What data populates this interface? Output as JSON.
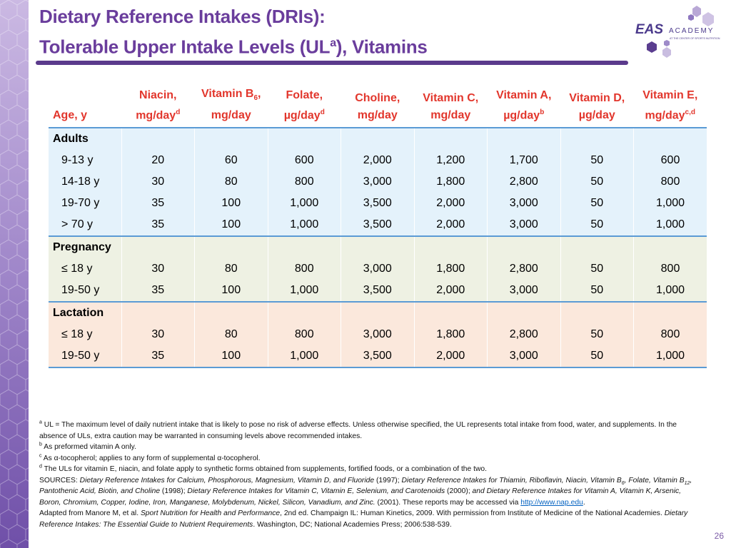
{
  "title": {
    "line1": "Dietary Reference Intakes (DRIs):",
    "line2": [
      "Tolerable Upper Intake Levels (UL",
      {
        "t": "a",
        "s": "sup"
      },
      "), Vitamins"
    ]
  },
  "logo": {
    "brand": "EAS",
    "name": "ACADEMY",
    "tagline": "AT THE CENTER OF SPORTS NUTRITION"
  },
  "table": {
    "header": {
      "age": "Age, y",
      "columns": [
        {
          "line1": [
            "Niacin,"
          ],
          "line2": [
            "mg/day",
            {
              "t": "d",
              "s": "sup"
            }
          ]
        },
        {
          "line1": [
            "Vitamin B",
            {
              "t": "6",
              "s": "sub"
            },
            ","
          ],
          "line2": [
            "mg/day"
          ]
        },
        {
          "line1": [
            "Folate,"
          ],
          "line2": [
            "µg/day",
            {
              "t": "d",
              "s": "sup"
            }
          ]
        },
        {
          "line1": [
            "Choline,"
          ],
          "line2": [
            "mg/day"
          ]
        },
        {
          "line1": [
            "Vitamin C,"
          ],
          "line2": [
            "mg/day"
          ]
        },
        {
          "line1": [
            "Vitamin A,"
          ],
          "line2": [
            "µg/day",
            {
              "t": "b",
              "s": "sup"
            }
          ]
        },
        {
          "line1": [
            "Vitamin D,"
          ],
          "line2": [
            "µg/day"
          ]
        },
        {
          "line1": [
            "Vitamin E,"
          ],
          "line2": [
            "mg/day",
            {
              "t": "c,d",
              "s": "sup"
            }
          ]
        }
      ]
    },
    "groups": [
      {
        "label": "Adults",
        "color": "#e4f2fb",
        "rows": [
          {
            "age": "9-13 y",
            "values": [
              "20",
              "60",
              "600",
              "2,000",
              "1,200",
              "1,700",
              "50",
              "600"
            ]
          },
          {
            "age": "14-18 y",
            "values": [
              "30",
              "80",
              "800",
              "3,000",
              "1,800",
              "2,800",
              "50",
              "800"
            ]
          },
          {
            "age": "19-70 y",
            "values": [
              "35",
              "100",
              "1,000",
              "3,500",
              "2,000",
              "3,000",
              "50",
              "1,000"
            ]
          },
          {
            "age": "> 70 y",
            "values": [
              "35",
              "100",
              "1,000",
              "3,500",
              "2,000",
              "3,000",
              "50",
              "1,000"
            ]
          }
        ]
      },
      {
        "label": "Pregnancy",
        "color": "#eef1e3",
        "rows": [
          {
            "age": "≤ 18 y",
            "values": [
              "30",
              "80",
              "800",
              "3,000",
              "1,800",
              "2,800",
              "50",
              "800"
            ]
          },
          {
            "age": "19-50 y",
            "values": [
              "35",
              "100",
              "1,000",
              "3,500",
              "2,000",
              "3,000",
              "50",
              "1,000"
            ]
          }
        ]
      },
      {
        "label": "Lactation",
        "color": "#fbe8dc",
        "rows": [
          {
            "age": "≤ 18 y",
            "values": [
              "30",
              "80",
              "800",
              "3,000",
              "1,800",
              "2,800",
              "50",
              "800"
            ]
          },
          {
            "age": "19-50 y",
            "values": [
              "35",
              "100",
              "1,000",
              "3,500",
              "2,000",
              "3,000",
              "50",
              "1,000"
            ]
          }
        ]
      }
    ]
  },
  "footnotes": [
    [
      {
        "t": "a",
        "s": "sup"
      },
      " UL = The maximum level of daily nutrient intake that is likely to pose no risk of adverse effects. Unless otherwise specified, the UL represents total intake from food, water, and supplements. In the absence of ULs, extra caution may be warranted in consuming levels above recommended intakes."
    ],
    [
      {
        "t": "b",
        "s": "sup"
      },
      " As preformed vitamin A only."
    ],
    [
      {
        "t": "c",
        "s": "sup"
      },
      " As α-tocopherol; applies to any form of supplemental α-tocopherol."
    ],
    [
      {
        "t": "d",
        "s": "sup"
      },
      " The ULs for vitamin E, niacin, and folate apply to synthetic forms obtained from supplements, fortified foods, or a combination of the two."
    ],
    [
      "SOURCES: ",
      {
        "t": "Dietary Reference Intakes for Calcium, Phosphorous, Magnesium, Vitamin D, and Fluoride",
        "s": "i"
      },
      " (1997); ",
      {
        "t": "Dietary Reference Intakes for Thiamin, Riboflavin, Niacin, Vitamin B",
        "s": "i"
      },
      {
        "t": "6",
        "s": "isub"
      },
      {
        "t": ", Folate, Vitamin B",
        "s": "i"
      },
      {
        "t": "12",
        "s": "isub"
      },
      {
        "t": ", Pantothenic Acid, Biotin, and Choline",
        "s": "i"
      },
      " (1998); ",
      {
        "t": "Dietary Reference Intakes for Vitamin C, Vitamin E, Selenium, and Carotenoids",
        "s": "i"
      },
      " (2000); ",
      {
        "t": "and Dietary Reference Intakes for Vitamin A, Vitamin K, Arsenic, Boron, Chromium, Copper, Iodine, Iron, Manganese, Molybdenum, Nickel, Silicon, Vanadium, and Zinc.",
        "s": "i"
      },
      " (2001). These reports may be accessed via ",
      {
        "t": "http://www.nap.edu",
        "s": "link"
      },
      "."
    ],
    [
      "Adapted from Manore M, et al. ",
      {
        "t": "Sport Nutrition for Health and Performance",
        "s": "i"
      },
      ", 2nd ed. Champaign IL: Human Kinetics, 2009. With permission from Institute of Medicine of the National Academies. ",
      {
        "t": "Dietary Reference Intakes: The Essential Guide to Nutrient Requirements",
        "s": "i"
      },
      ". Washington, DC; National Academies Press; 2006:538-539."
    ]
  ],
  "page_number": "26"
}
